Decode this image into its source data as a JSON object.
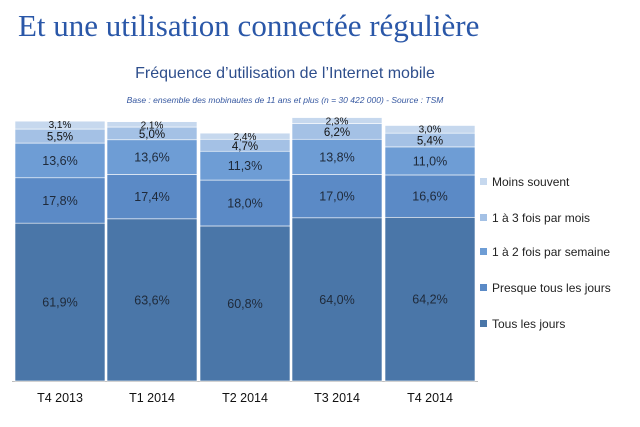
{
  "slide": {
    "title": "Et une utilisation connectée régulière"
  },
  "chart_data": {
    "type": "bar",
    "stacked": true,
    "title": "Fréquence d’utilisation de l’Internet mobile",
    "subtitle": "Base : ensemble des mobinautes de 11 ans et plus (n = 30 422 000) - Source : TSM",
    "categories": [
      "T4 2013",
      "T1 2014",
      "T2 2014",
      "T3 2014",
      "T4 2014"
    ],
    "ylim": [
      0,
      100
    ],
    "grid": false,
    "legend_position": "right",
    "series": [
      {
        "name": "Tous les jours",
        "values": [
          61.9,
          63.6,
          60.8,
          64.0,
          64.2
        ],
        "labels": [
          "61,9%",
          "63,6%",
          "60,8%",
          "64,0%",
          "64,2%"
        ],
        "color": "#4A76A8"
      },
      {
        "name": "Presque tous les jours",
        "values": [
          17.8,
          17.4,
          18.0,
          17.0,
          16.6
        ],
        "labels": [
          "17,8%",
          "17,4%",
          "18,0%",
          "17,0%",
          "16,6%"
        ],
        "color": "#5B8AC6"
      },
      {
        "name": "1 à 2 fois par semaine",
        "values": [
          13.6,
          13.6,
          11.3,
          13.8,
          11.0
        ],
        "labels": [
          "13,6%",
          "13,6%",
          "11,3%",
          "13,8%",
          "11,0%"
        ],
        "color": "#6E9DD5"
      },
      {
        "name": "1 à 3 fois par mois",
        "values": [
          5.5,
          5.0,
          4.7,
          6.2,
          5.4
        ],
        "labels": [
          "5,5%",
          "5,0%",
          "4,7%",
          "6,2%",
          "5,4%"
        ],
        "color": "#A4C1E5"
      },
      {
        "name": "Moins souvent",
        "values": [
          3.1,
          2.1,
          2.4,
          2.3,
          3.0
        ],
        "labels": [
          "3,1%",
          "2,1%",
          "2,4%",
          "2,3%",
          "3,0%"
        ],
        "color": "#C6D8EE"
      }
    ],
    "legend_order": [
      "Moins souvent",
      "1 à 3 fois par mois",
      "1 à 2 fois par semaine",
      "Presque tous les jours",
      "Tous les jours"
    ]
  }
}
